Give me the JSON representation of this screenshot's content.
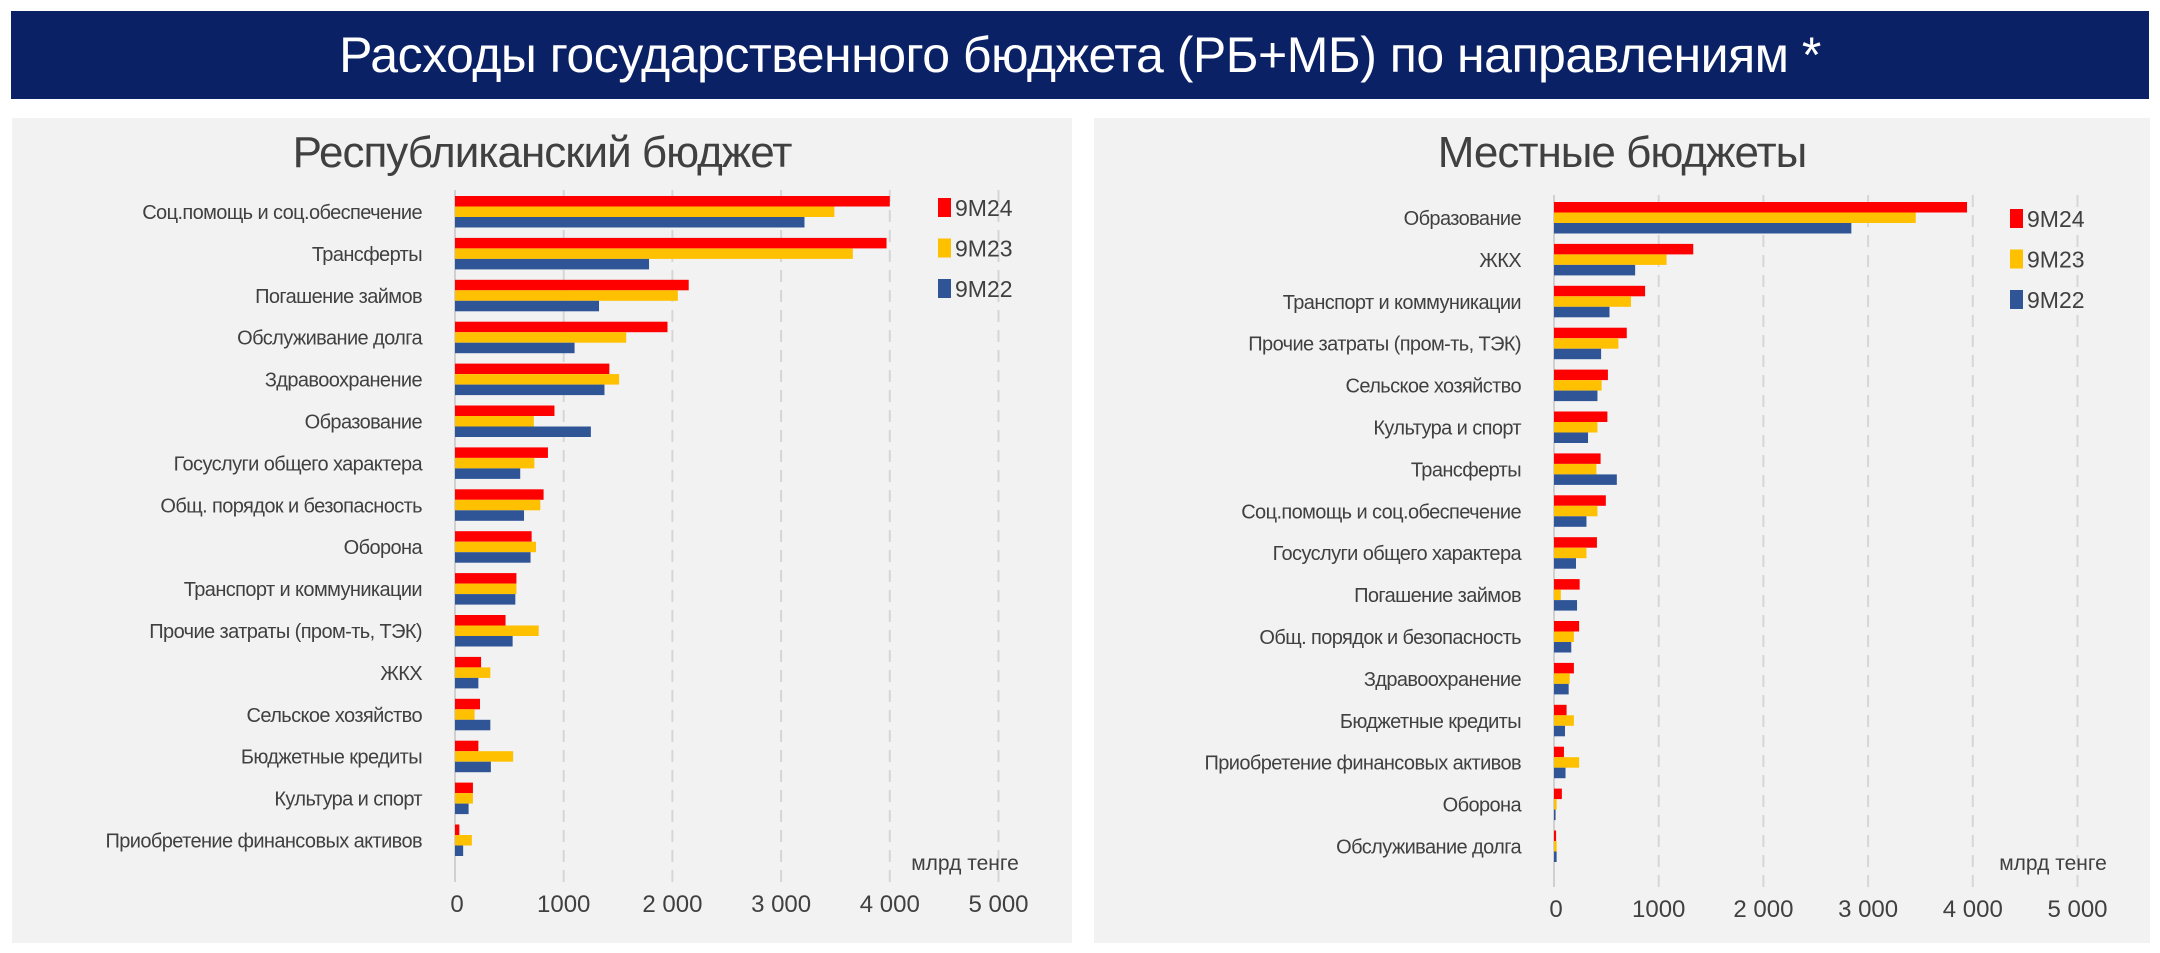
{
  "title": "Расходы государственного бюджета (РБ+МБ) по направлениям *",
  "colors": {
    "banner": "#0b2166",
    "9M24": "#ff0000",
    "9M23": "#ffc000",
    "9M22": "#2f5597"
  },
  "chart_data": [
    {
      "type": "bar",
      "orientation": "horizontal",
      "title": "Республиканский бюджет",
      "unit_label": "млрд тенге",
      "xlim": [
        0,
        5000
      ],
      "xticks": [
        "0",
        "1000",
        "2 000",
        "3 000",
        "4 000",
        "5 000"
      ],
      "grid": "vertical dashed",
      "legend": "top-right",
      "categories": [
        "Соц.помощь и соц.обеспечение",
        "Трансферты",
        "Погашение займов",
        "Обслуживание долга",
        "Здравоохранение",
        "Образование",
        "Госуслуги общего характера",
        "Общ. порядок и безопасность",
        "Оборона",
        "Транспорт и коммуникации",
        "Прочие затраты (пром-ть, ТЭК)",
        "ЖКХ",
        "Сельское хозяйство",
        "Бюджетные кредиты",
        "Культура и спорт",
        "Приобретение финансовых активов"
      ],
      "series": [
        {
          "name": "9M24",
          "color": "#ff0000",
          "values": [
            4000,
            3970,
            2150,
            1955,
            1420,
            915,
            855,
            815,
            705,
            565,
            465,
            240,
            230,
            215,
            165,
            40
          ]
        },
        {
          "name": "9M23",
          "color": "#ffc000",
          "values": [
            3490,
            3660,
            2050,
            1575,
            1510,
            725,
            730,
            785,
            745,
            565,
            770,
            325,
            180,
            535,
            165,
            155
          ]
        },
        {
          "name": "9M22",
          "color": "#2f5597",
          "values": [
            3215,
            1785,
            1325,
            1100,
            1375,
            1250,
            600,
            635,
            695,
            555,
            530,
            215,
            325,
            330,
            125,
            75
          ]
        }
      ]
    },
    {
      "type": "bar",
      "orientation": "horizontal",
      "title": "Местные бюджеты",
      "unit_label": "млрд тенге",
      "xlim": [
        0,
        5000
      ],
      "xticks": [
        "0",
        "1000",
        "2 000",
        "3 000",
        "4 000",
        "5 000"
      ],
      "grid": "vertical dashed",
      "legend": "top-right",
      "categories": [
        "Образование",
        "ЖКХ",
        "Транспорт и коммуникации",
        "Прочие затраты (пром-ть, ТЭК)",
        "Сельское хозяйство",
        "Культура и спорт",
        "Трансферты",
        "Соц.помощь и соц.обеспечение",
        "Госуслуги общего характера",
        "Погашение займов",
        "Общ. порядок и безопасность",
        "Здравоохранение",
        "Бюджетные кредиты",
        "Приобретение финансовых активов",
        "Оборона",
        "Обслуживание долга"
      ],
      "series": [
        {
          "name": "9M24",
          "color": "#ff0000",
          "values": [
            3945,
            1330,
            870,
            695,
            515,
            510,
            445,
            495,
            410,
            245,
            240,
            190,
            120,
            95,
            75,
            20
          ]
        },
        {
          "name": "9M23",
          "color": "#ffc000",
          "values": [
            3455,
            1075,
            735,
            615,
            455,
            415,
            405,
            415,
            310,
            65,
            190,
            150,
            190,
            240,
            25,
            25
          ]
        },
        {
          "name": "9M22",
          "color": "#2f5597",
          "values": [
            2840,
            775,
            530,
            450,
            415,
            325,
            600,
            310,
            210,
            220,
            165,
            140,
            105,
            110,
            15,
            25
          ]
        }
      ]
    }
  ]
}
